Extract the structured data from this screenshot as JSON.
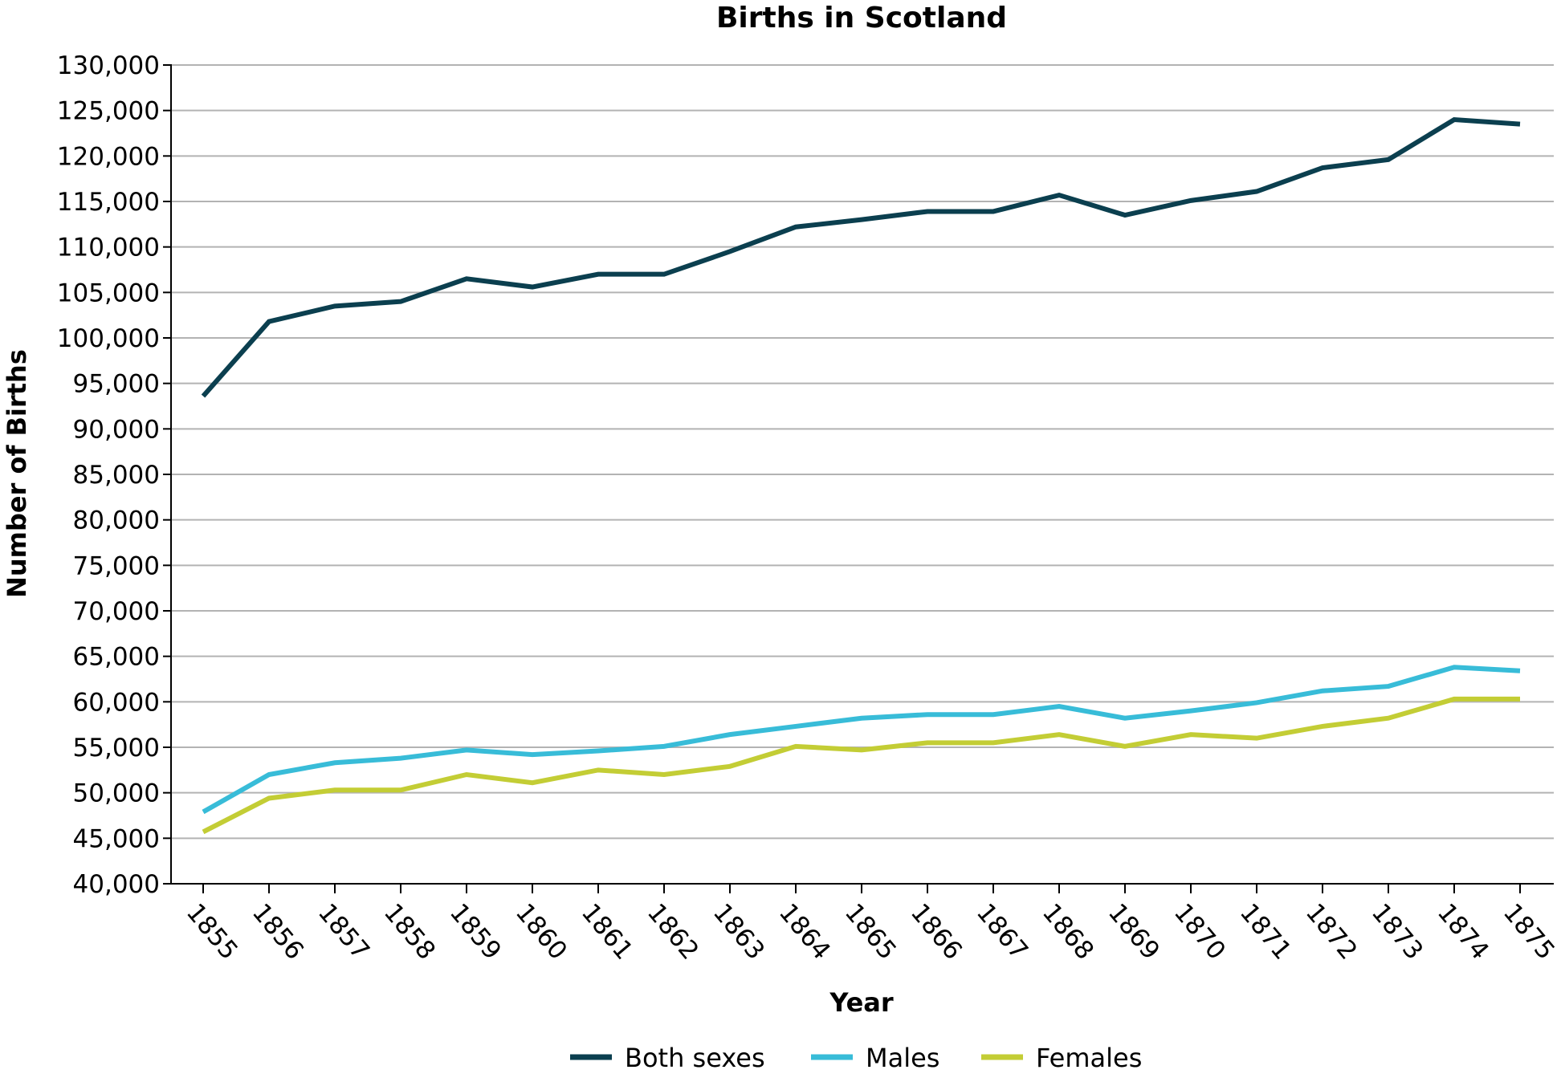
{
  "chart_data": {
    "type": "line",
    "title": "Births in Scotland",
    "xlabel": "Year",
    "ylabel": "Number of Births",
    "ylim": [
      40000,
      130000
    ],
    "ytick_step": 5000,
    "grid": true,
    "legend_position": "bottom",
    "x": [
      1855,
      1856,
      1857,
      1858,
      1859,
      1860,
      1861,
      1862,
      1863,
      1864,
      1865,
      1866,
      1867,
      1868,
      1869,
      1870,
      1871,
      1872,
      1873,
      1874,
      1875
    ],
    "series": [
      {
        "name": "Both sexes",
        "color": "#0b3f4f",
        "values": [
          93600,
          101800,
          103500,
          104000,
          106500,
          105600,
          107000,
          107000,
          109500,
          112200,
          113000,
          113900,
          113900,
          115700,
          113500,
          115100,
          116100,
          118700,
          119600,
          124000,
          123500
        ]
      },
      {
        "name": "Males",
        "color": "#38bcd8",
        "values": [
          47900,
          52000,
          53300,
          53800,
          54700,
          54200,
          54600,
          55100,
          56400,
          57300,
          58200,
          58600,
          58600,
          59500,
          58200,
          59000,
          59900,
          61200,
          61700,
          63800,
          63400
        ]
      },
      {
        "name": "Females",
        "color": "#c3cd35",
        "values": [
          45700,
          49400,
          50300,
          50300,
          52000,
          51100,
          52500,
          52000,
          52900,
          55100,
          54700,
          55500,
          55500,
          56400,
          55100,
          56400,
          56000,
          57300,
          58200,
          60300,
          60300
        ]
      }
    ]
  }
}
